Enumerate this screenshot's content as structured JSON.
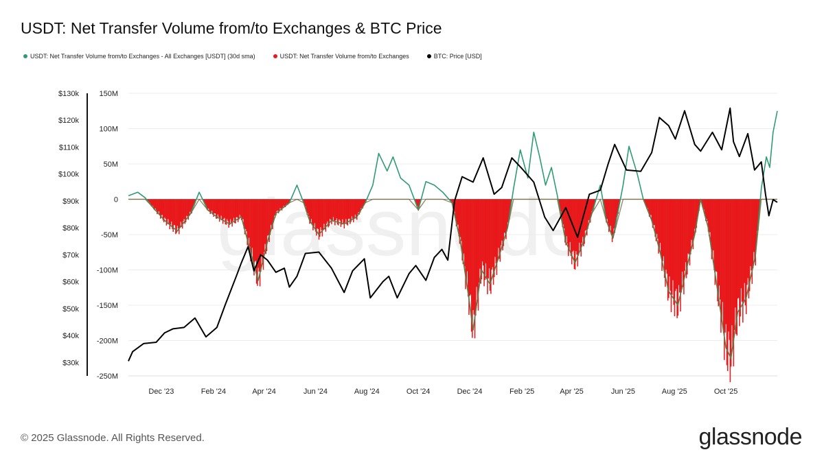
{
  "title": "USDT: Net Transfer Volume from/to Exchanges & BTC Price",
  "legend": [
    {
      "label": "USDT: Net Transfer Volume from/to Exchanges - All Exchanges [USDT] (30d sma)",
      "color": "#2e9b73"
    },
    {
      "label": "USDT: Net Transfer Volume from/to Exchanges",
      "color": "#e8191b"
    },
    {
      "label": "BTC: Price [USD]",
      "color": "#000000"
    }
  ],
  "footer": "© 2025 Glassnode. All Rights Reserved.",
  "logo": "glassnode",
  "watermark": "glassnode",
  "chart_data": {
    "type": "area",
    "x_tick_labels": [
      "Dec '23",
      "Feb '24",
      "Apr '24",
      "Jun '24",
      "Aug '24",
      "Oct '24",
      "Dec '24",
      "Feb '25",
      "Apr '25",
      "Jun '25",
      "Aug '25",
      "Oct '25"
    ],
    "x_range": [
      "2023-10-23",
      "2025-12-01"
    ],
    "y_left_ticks": [
      "$130k",
      "$120k",
      "$110k",
      "$100k",
      "$90k",
      "$80k",
      "$70k",
      "$60k",
      "$50k",
      "$40k",
      "$30k"
    ],
    "y_left_range": [
      25000,
      130000
    ],
    "y_right_ticks": [
      "150M",
      "100M",
      "50M",
      "0",
      "-50M",
      "-100M",
      "-150M",
      "-200M",
      "-250M"
    ],
    "y_right_range": [
      -250000000,
      150000000
    ],
    "series": [
      {
        "name": "USDT: Net Transfer Volume from/to Exchanges - All Exchanges [USDT] (30d sma)",
        "color": "#2e9b73",
        "axis": "right",
        "unit": "M USDT",
        "points": [
          [
            "2023-10-23",
            5
          ],
          [
            "2023-11-03",
            10
          ],
          [
            "2023-11-12",
            2
          ],
          [
            "2023-11-20",
            -10
          ],
          [
            "2023-12-05",
            -30
          ],
          [
            "2023-12-20",
            -45
          ],
          [
            "2024-01-05",
            -20
          ],
          [
            "2024-01-15",
            10
          ],
          [
            "2024-01-25",
            -15
          ],
          [
            "2024-02-05",
            -25
          ],
          [
            "2024-02-20",
            -35
          ],
          [
            "2024-03-05",
            -25
          ],
          [
            "2024-03-15",
            -70
          ],
          [
            "2024-03-25",
            -115
          ],
          [
            "2024-04-05",
            -60
          ],
          [
            "2024-04-15",
            -20
          ],
          [
            "2024-05-01",
            -5
          ],
          [
            "2024-05-10",
            20
          ],
          [
            "2024-05-18",
            -5
          ],
          [
            "2024-05-25",
            -30
          ],
          [
            "2024-06-05",
            -50
          ],
          [
            "2024-06-20",
            -30
          ],
          [
            "2024-07-05",
            -35
          ],
          [
            "2024-07-20",
            -25
          ],
          [
            "2024-07-30",
            -5
          ],
          [
            "2024-08-08",
            20
          ],
          [
            "2024-08-15",
            65
          ],
          [
            "2024-08-25",
            40
          ],
          [
            "2024-09-01",
            60
          ],
          [
            "2024-09-10",
            30
          ],
          [
            "2024-09-20",
            20
          ],
          [
            "2024-10-01",
            -15
          ],
          [
            "2024-10-10",
            25
          ],
          [
            "2024-10-20",
            20
          ],
          [
            "2024-10-30",
            10
          ],
          [
            "2024-11-10",
            -5
          ],
          [
            "2024-11-20",
            -60
          ],
          [
            "2024-11-30",
            -140
          ],
          [
            "2024-12-05",
            -185
          ],
          [
            "2024-12-15",
            -100
          ],
          [
            "2024-12-25",
            -120
          ],
          [
            "2025-01-05",
            -80
          ],
          [
            "2025-01-15",
            -40
          ],
          [
            "2025-01-22",
            15
          ],
          [
            "2025-01-30",
            70
          ],
          [
            "2025-02-08",
            30
          ],
          [
            "2025-02-15",
            95
          ],
          [
            "2025-02-22",
            60
          ],
          [
            "2025-03-01",
            20
          ],
          [
            "2025-03-08",
            45
          ],
          [
            "2025-03-15",
            5
          ],
          [
            "2025-03-25",
            -60
          ],
          [
            "2025-04-05",
            -90
          ],
          [
            "2025-04-15",
            -60
          ],
          [
            "2025-04-25",
            -20
          ],
          [
            "2025-05-05",
            20
          ],
          [
            "2025-05-12",
            -30
          ],
          [
            "2025-05-20",
            -55
          ],
          [
            "2025-06-01",
            20
          ],
          [
            "2025-06-08",
            75
          ],
          [
            "2025-06-18",
            35
          ],
          [
            "2025-06-25",
            0
          ],
          [
            "2025-07-05",
            -30
          ],
          [
            "2025-07-15",
            -75
          ],
          [
            "2025-07-25",
            -130
          ],
          [
            "2025-08-05",
            -150
          ],
          [
            "2025-08-15",
            -100
          ],
          [
            "2025-08-25",
            -50
          ],
          [
            "2025-09-01",
            0
          ],
          [
            "2025-09-10",
            -40
          ],
          [
            "2025-09-20",
            -120
          ],
          [
            "2025-10-01",
            -210
          ],
          [
            "2025-10-07",
            -225
          ],
          [
            "2025-10-15",
            -160
          ],
          [
            "2025-10-25",
            -140
          ],
          [
            "2025-11-05",
            -80
          ],
          [
            "2025-11-12",
            15
          ],
          [
            "2025-11-18",
            60
          ],
          [
            "2025-11-22",
            45
          ],
          [
            "2025-11-26",
            95
          ],
          [
            "2025-12-01",
            125
          ]
        ]
      },
      {
        "name": "USDT: Net Transfer Volume from/to Exchanges",
        "color": "#e8191b",
        "axis": "right",
        "unit": "M USDT",
        "note_points_same_as_sma_negative_part": true
      },
      {
        "name": "BTC: Price [USD]",
        "color": "#000000",
        "axis": "left",
        "unit": "USD",
        "points": [
          [
            "2023-10-23",
            30500
          ],
          [
            "2023-10-28",
            34000
          ],
          [
            "2023-11-10",
            37000
          ],
          [
            "2023-11-25",
            37500
          ],
          [
            "2023-12-05",
            41000
          ],
          [
            "2023-12-15",
            42500
          ],
          [
            "2023-12-28",
            43000
          ],
          [
            "2024-01-10",
            46500
          ],
          [
            "2024-01-23",
            39500
          ],
          [
            "2024-02-05",
            43000
          ],
          [
            "2024-02-15",
            51500
          ],
          [
            "2024-02-28",
            62000
          ],
          [
            "2024-03-05",
            67000
          ],
          [
            "2024-03-13",
            73000
          ],
          [
            "2024-03-20",
            64000
          ],
          [
            "2024-03-28",
            70000
          ],
          [
            "2024-04-05",
            68000
          ],
          [
            "2024-04-15",
            63500
          ],
          [
            "2024-04-25",
            65000
          ],
          [
            "2024-05-01",
            58000
          ],
          [
            "2024-05-10",
            62000
          ],
          [
            "2024-05-20",
            70500
          ],
          [
            "2024-06-05",
            71000
          ],
          [
            "2024-06-20",
            65000
          ],
          [
            "2024-07-05",
            56000
          ],
          [
            "2024-07-15",
            64000
          ],
          [
            "2024-07-29",
            68500
          ],
          [
            "2024-08-05",
            54000
          ],
          [
            "2024-08-20",
            60000
          ],
          [
            "2024-08-27",
            62000
          ],
          [
            "2024-09-06",
            54000
          ],
          [
            "2024-09-20",
            63000
          ],
          [
            "2024-09-28",
            66000
          ],
          [
            "2024-10-10",
            60500
          ],
          [
            "2024-10-20",
            69000
          ],
          [
            "2024-10-29",
            72000
          ],
          [
            "2024-11-05",
            68000
          ],
          [
            "2024-11-13",
            90000
          ],
          [
            "2024-11-22",
            99000
          ],
          [
            "2024-12-05",
            97000
          ],
          [
            "2024-12-17",
            106000
          ],
          [
            "2024-12-30",
            92500
          ],
          [
            "2025-01-08",
            95000
          ],
          [
            "2025-01-20",
            106000
          ],
          [
            "2025-02-01",
            102000
          ],
          [
            "2025-02-15",
            97000
          ],
          [
            "2025-02-28",
            84000
          ],
          [
            "2025-03-10",
            79000
          ],
          [
            "2025-03-25",
            87500
          ],
          [
            "2025-04-08",
            76500
          ],
          [
            "2025-04-22",
            92500
          ],
          [
            "2025-05-05",
            94000
          ],
          [
            "2025-05-14",
            103500
          ],
          [
            "2025-05-22",
            111000
          ],
          [
            "2025-06-05",
            101500
          ],
          [
            "2025-06-22",
            101000
          ],
          [
            "2025-07-05",
            108000
          ],
          [
            "2025-07-14",
            121000
          ],
          [
            "2025-07-25",
            118000
          ],
          [
            "2025-08-02",
            113000
          ],
          [
            "2025-08-13",
            123500
          ],
          [
            "2025-08-25",
            111000
          ],
          [
            "2025-09-01",
            108500
          ],
          [
            "2025-09-15",
            115500
          ],
          [
            "2025-09-26",
            109000
          ],
          [
            "2025-10-06",
            124500
          ],
          [
            "2025-10-10",
            112000
          ],
          [
            "2025-10-17",
            106500
          ],
          [
            "2025-10-27",
            115000
          ],
          [
            "2025-11-04",
            101500
          ],
          [
            "2025-11-12",
            104500
          ],
          [
            "2025-11-17",
            92500
          ],
          [
            "2025-11-21",
            84500
          ],
          [
            "2025-11-26",
            90500
          ],
          [
            "2025-12-01",
            89500
          ]
        ]
      }
    ],
    "grid": true,
    "legend_position": "top-left"
  }
}
